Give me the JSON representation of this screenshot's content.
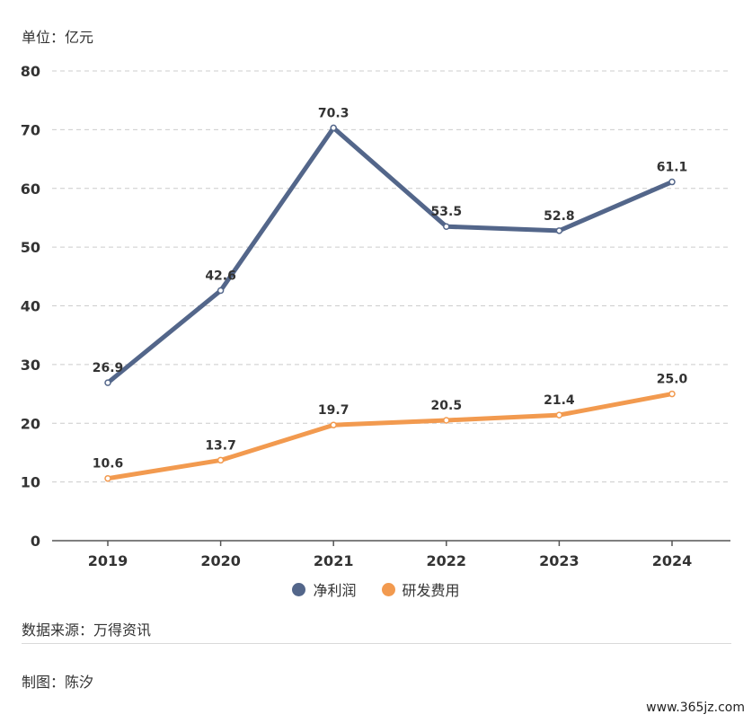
{
  "unit_label": "单位：亿元",
  "source": "数据来源：万得资讯",
  "author": "制图：陈汐",
  "watermark": "www.365jz.com",
  "chart_data": {
    "type": "line",
    "categories": [
      "2019",
      "2020",
      "2021",
      "2022",
      "2023",
      "2024"
    ],
    "series": [
      {
        "name": "净利润",
        "color": "#53668a",
        "values": [
          26.9,
          42.6,
          70.3,
          53.5,
          52.8,
          61.1
        ],
        "labels": [
          "26.9",
          "42.6",
          "70.3",
          "53.5",
          "52.8",
          "61.1"
        ]
      },
      {
        "name": "研发费用",
        "color": "#f29a4f",
        "values": [
          10.6,
          13.7,
          19.7,
          20.5,
          21.4,
          25.0
        ],
        "labels": [
          "10.6",
          "13.7",
          "19.7",
          "20.5",
          "21.4",
          "25.0"
        ]
      }
    ],
    "ylim": [
      0,
      80
    ],
    "yticks": [
      0,
      10,
      20,
      30,
      40,
      50,
      60,
      70,
      80
    ],
    "ytick_labels": [
      "0",
      "10",
      "20",
      "30",
      "40",
      "50",
      "60",
      "70",
      "80"
    ],
    "grid": true,
    "legend": "bottom-center"
  }
}
